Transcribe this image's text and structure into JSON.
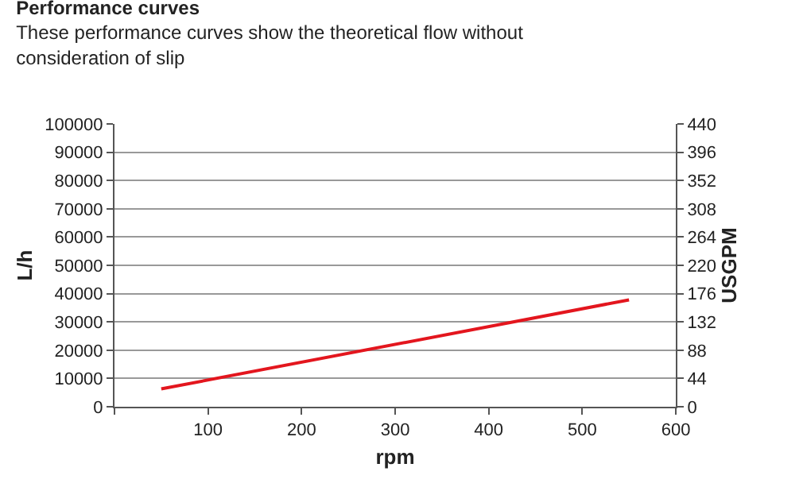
{
  "chart_data": {
    "type": "line",
    "title": "Performance curves",
    "subtitle": "These performance curves show the theoretical flow without consideration of slip",
    "xlabel": "rpm",
    "ylabel": "L/h",
    "y2label": "USGPM",
    "x": [
      50,
      550
    ],
    "series": [
      {
        "color": "#e3161e",
        "values": [
          6300,
          37800
        ]
      }
    ],
    "xlim": [
      0,
      600
    ],
    "xticks": [
      {
        "value": 0,
        "label": null
      },
      100,
      200,
      300,
      400,
      500,
      600
    ],
    "ylim": [
      0,
      100000
    ],
    "yticks": [
      0,
      10000,
      20000,
      30000,
      40000,
      50000,
      60000,
      70000,
      80000,
      90000,
      100000
    ],
    "y2lim": [
      0,
      440
    ],
    "y2ticks": [
      0,
      44,
      88,
      132,
      176,
      220,
      264,
      308,
      352,
      396,
      440
    ],
    "grid": "y",
    "legend": false
  }
}
